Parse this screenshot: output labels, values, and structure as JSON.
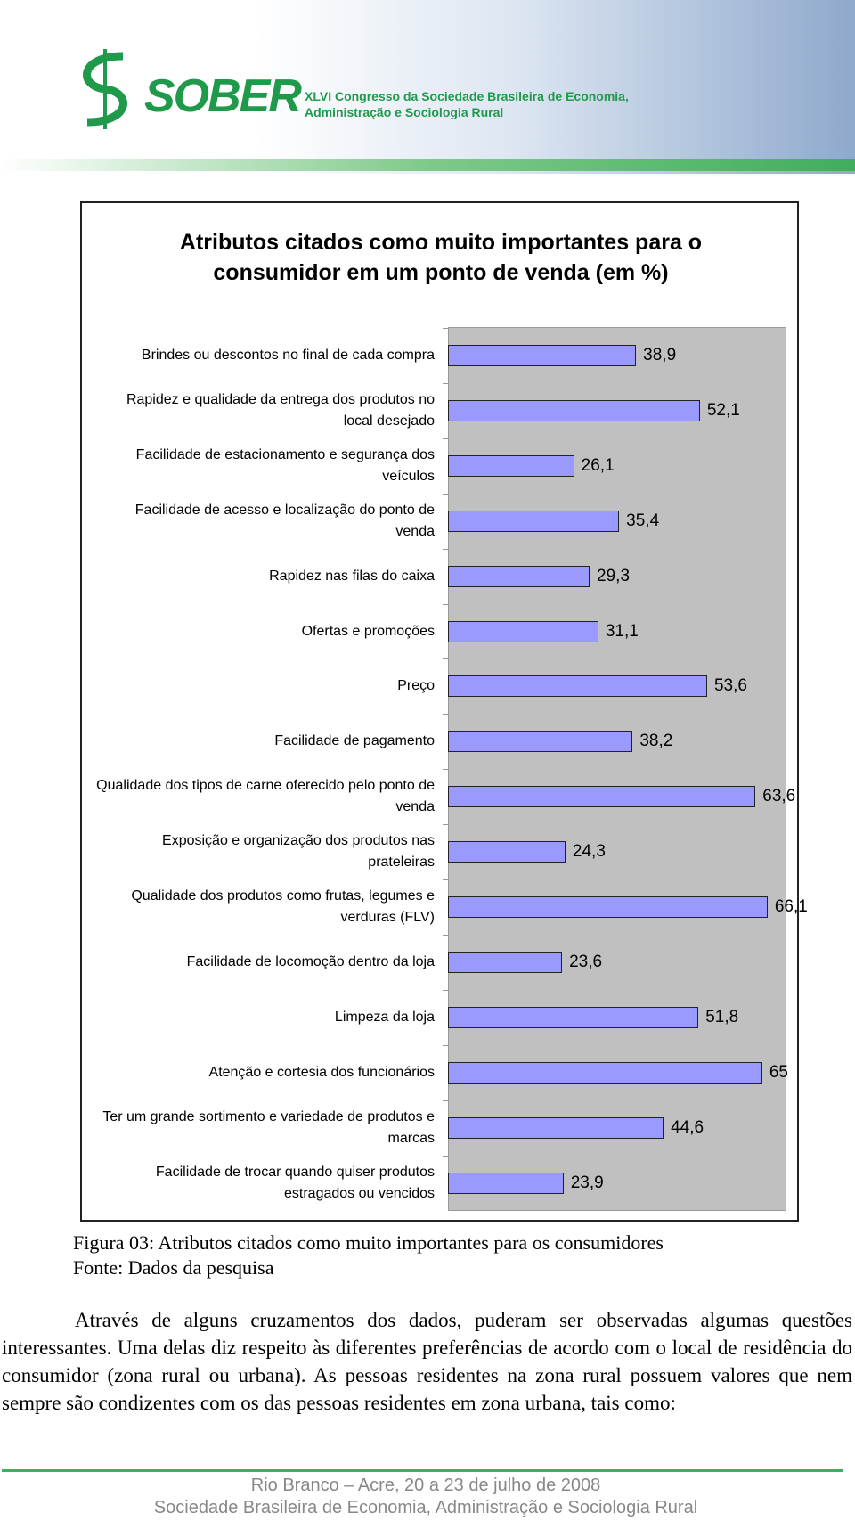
{
  "header": {
    "logo": "SOBER",
    "event_line1": "XLVI Congresso da Sociedade Brasileira de Economia,",
    "event_line2": "Administração e Sociologia Rural"
  },
  "chart_data": {
    "type": "hbar",
    "title": "Atributos citados como muito importantes para o consumidor em um ponto de venda (em %)",
    "categories": [
      "Brindes ou descontos no final de cada compra",
      "Rapidez e qualidade da entrega dos produtos no local desejado",
      "Facilidade de estacionamento e segurança dos veículos",
      "Facilidade de acesso e localização do ponto de venda",
      "Rapidez nas filas do caixa",
      "Ofertas e promoções",
      "Preço",
      "Facilidade de pagamento",
      "Qualidade dos tipos de carne oferecido pelo ponto de venda",
      "Exposição e organização dos produtos nas prateleiras",
      "Qualidade dos produtos  como frutas, legumes e verduras (FLV)",
      "Facilidade de locomoção dentro da loja",
      "Limpeza da loja",
      "Atenção e cortesia dos funcionários",
      "Ter um grande sortimento e variedade de produtos e marcas",
      "Facilidade de trocar quando quiser produtos estragados ou vencidos"
    ],
    "values": [
      38.9,
      52.1,
      26.1,
      35.4,
      29.3,
      31.1,
      53.6,
      38.2,
      63.6,
      24.3,
      66.1,
      23.6,
      51.8,
      65,
      44.6,
      23.9
    ],
    "value_labels": [
      "38,9",
      "52,1",
      "26,1",
      "35,4",
      "29,3",
      "31,1",
      "53,6",
      "38,2",
      "63,6",
      "24,3",
      "66,1",
      "23,6",
      "51,8",
      "65",
      "44,6",
      "23,9"
    ],
    "color": "#9999ff",
    "xlim": [
      0,
      70
    ]
  },
  "caption": {
    "figure": "Figura 03: Atributos citados como muito importantes para os consumidores",
    "source": "Fonte: Dados da pesquisa"
  },
  "paragraph": "Através de alguns cruzamentos dos dados, puderam ser observadas algumas questões interessantes. Uma delas diz respeito às diferentes preferências de acordo com o local de residência do consumidor (zona rural ou urbana). As pessoas residentes na zona rural possuem valores que nem sempre são condizentes com os das pessoas residentes em zona urbana, tais como:",
  "footer": {
    "line1": "Rio Branco – Acre, 20 a 23 de julho de 2008",
    "line2": "Sociedade Brasileira de Economia, Administração e Sociologia Rural"
  }
}
